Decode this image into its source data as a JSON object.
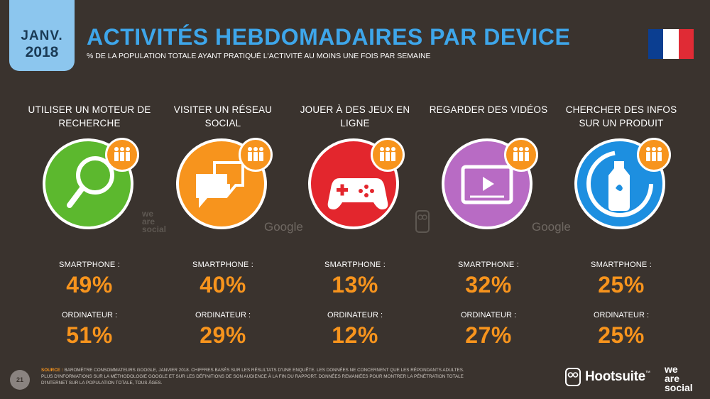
{
  "header": {
    "month": "JANV.",
    "year": "2018",
    "title": "ACTIVITÉS HEBDOMADAIRES PAR DEVICE",
    "subtitle": "% DE LA POPULATION TOTALE AYANT PRATIQUÉ L'ACTIVITÉ AU MOINS UNE FOIS PAR SEMAINE"
  },
  "flag": {
    "colors": [
      "#0b3e91",
      "#ffffff",
      "#e02b35"
    ]
  },
  "activities": [
    {
      "label": "UTILISER UN MOTEUR DE RECHERCHE",
      "icon": "magnifier-icon",
      "color": "#5cb82e",
      "smartphone_label": "SMARTPHONE :",
      "smartphone": "49%",
      "computer_label": "ORDINATEUR :",
      "computer": "51%"
    },
    {
      "label": "VISITER UN RÉSEAU SOCIAL",
      "icon": "speech-bubbles-icon",
      "color": "#f7941d",
      "smartphone_label": "SMARTPHONE :",
      "smartphone": "40%",
      "computer_label": "ORDINATEUR :",
      "computer": "29%"
    },
    {
      "label": "JOUER À DES JEUX EN LIGNE",
      "icon": "gamepad-icon",
      "color": "#e3262d",
      "smartphone_label": "SMARTPHONE :",
      "smartphone": "13%",
      "computer_label": "ORDINATEUR :",
      "computer": "12%"
    },
    {
      "label": "REGARDER DES VIDÉOS",
      "icon": "video-player-icon",
      "color": "#b86bc4",
      "smartphone_label": "SMARTPHONE :",
      "smartphone": "32%",
      "computer_label": "ORDINATEUR :",
      "computer": "27%"
    },
    {
      "label": "CHERCHER DES INFOS SUR UN PRODUIT",
      "icon": "product-bottle-icon",
      "color": "#1d8fe0",
      "smartphone_label": "SMARTPHONE :",
      "smartphone": "25%",
      "computer_label": "ORDINATEUR :",
      "computer": "25%"
    }
  ],
  "watermarks": {
    "google": "Google",
    "wearesocial": [
      "we",
      "are",
      "social"
    ]
  },
  "footer": {
    "page": "21",
    "source_label": "SOURCE :",
    "source_text": "BAROMÈTRE CONSOMMATEURS GOOGLE, JANVIER 2018. CHIFFRES BASÉS SUR LES RÉSULTATS D'UNE ENQUÊTE. LES DONNÉES NE CONCERNENT QUE LES RÉPONDANTS ADULTES. PLUS D'INFORMATIONS SUR LA MÉTHODOLOGIE GOOGLE ET SUR LES DÉFINITIONS DE SON AUDIENCE À LA FIN DU RAPPORT. DONNÉES REMANIÉES POUR MONTRER LA PÉNÉTRATION TOTALE D'INTERNET SUR LA POPULATION TOTALE, TOUS ÂGES.",
    "hootsuite": "Hootsuite",
    "tm": "™",
    "was": [
      "we",
      "are",
      "social"
    ]
  }
}
